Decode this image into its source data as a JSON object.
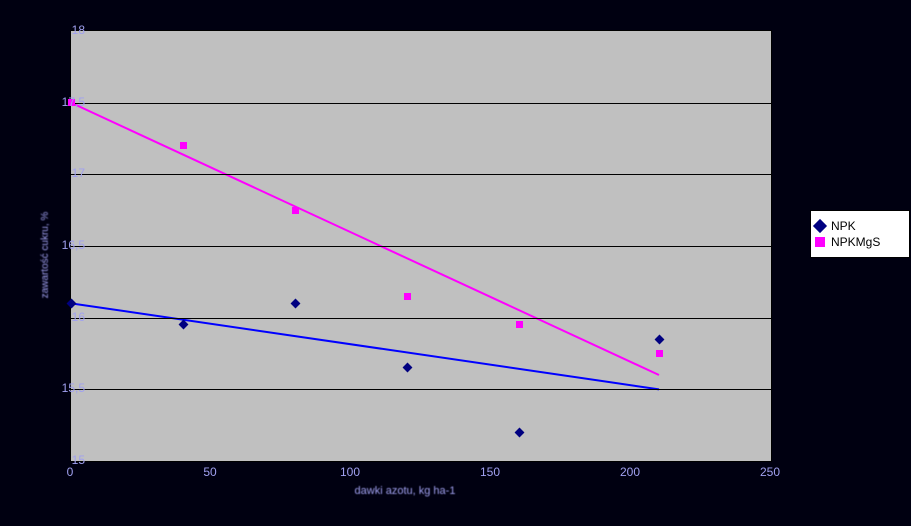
{
  "chart": {
    "type": "scatter+trend",
    "background_color": "#000011",
    "plot_bg": "#c0c0c0",
    "grid_color": "#000000",
    "xlim": [
      0,
      250
    ],
    "ylim": [
      15,
      18
    ],
    "xtick_step": 50,
    "ytick_step": 0.5,
    "x_ticks": [
      "0",
      "50",
      "100",
      "150",
      "200",
      "250"
    ],
    "y_ticks": [
      "15",
      "15,5",
      "16",
      "16,5",
      "17",
      "17,5",
      "18"
    ],
    "xlabel": "dawki azotu, kg ha-1",
    "ylabel": "zawartość cukru, %",
    "label_fontsize": 11,
    "tick_fontsize": 12,
    "series": [
      {
        "name": "NPK",
        "marker": "diamond",
        "color": "#000080",
        "points": [
          [
            0,
            16.1
          ],
          [
            40,
            15.95
          ],
          [
            80,
            16.1
          ],
          [
            120,
            15.65
          ],
          [
            160,
            15.2
          ],
          [
            210,
            15.85
          ]
        ],
        "trend": {
          "color": "#0000ff",
          "width": 2,
          "x1": 0,
          "y1": 16.1,
          "x2": 210,
          "y2": 15.5
        }
      },
      {
        "name": "NPKMgS",
        "marker": "square",
        "color": "#ff00ff",
        "points": [
          [
            0,
            17.5
          ],
          [
            40,
            17.2
          ],
          [
            80,
            16.75
          ],
          [
            120,
            16.15
          ],
          [
            160,
            15.95
          ],
          [
            210,
            15.75
          ]
        ],
        "trend": {
          "color": "#ff00ff",
          "width": 2,
          "x1": 0,
          "y1": 17.5,
          "x2": 210,
          "y2": 15.6
        }
      }
    ],
    "legend": {
      "position": "right",
      "items": [
        "NPK",
        "NPKMgS"
      ],
      "bg": "#ffffff"
    }
  }
}
